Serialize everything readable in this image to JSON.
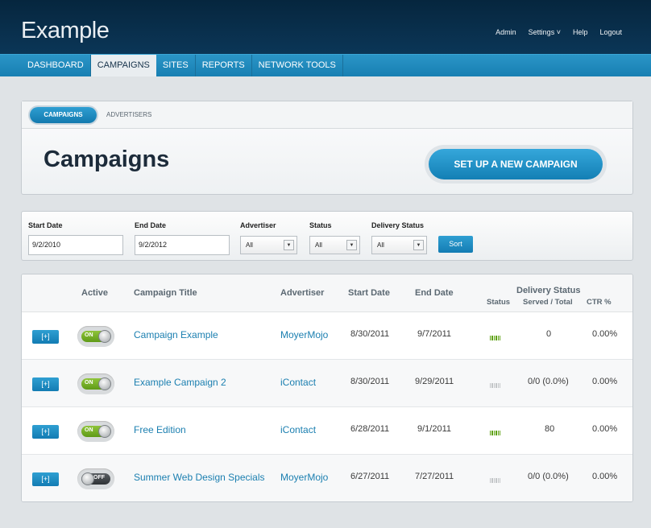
{
  "app": {
    "title": "Example"
  },
  "toplinks": [
    {
      "label": "Admin"
    },
    {
      "label": "Settings ˅"
    },
    {
      "label": "Help"
    },
    {
      "label": "Logout"
    }
  ],
  "nav": [
    {
      "label": "DASHBOARD"
    },
    {
      "label": "CAMPAIGNS"
    },
    {
      "label": "SITES"
    },
    {
      "label": "REPORTS"
    },
    {
      "label": "NETWORK TOOLS"
    }
  ],
  "subtabs": {
    "active": "CAMPAIGNS",
    "other": "ADVERTISERS"
  },
  "page": {
    "title": "Campaigns",
    "new_button": "SET UP A NEW CAMPAIGN"
  },
  "filters": {
    "start_label": "Start Date",
    "start_value": "9/2/2010",
    "end_label": "End Date",
    "end_value": "9/2/2012",
    "advertiser_label": "Advertiser",
    "advertiser_value": "All",
    "status_label": "Status",
    "status_value": "All",
    "delivery_label": "Delivery Status",
    "delivery_value": "All",
    "sort_label": "Sort"
  },
  "table": {
    "headers": {
      "active": "Active",
      "title": "Campaign Title",
      "advertiser": "Advertiser",
      "start": "Start Date",
      "end": "End Date",
      "delivery": "Delivery Status",
      "status": "Status",
      "served": "Served / Total",
      "ctr": "CTR %"
    },
    "rows": [
      {
        "expand": "[+]",
        "toggle": "ON",
        "title": "Campaign Example",
        "advertiser": "MoyerMojo",
        "start": "8/30/2011",
        "end": "9/7/2011",
        "status_color": "#5ea114",
        "served": "0",
        "ctr": "0.00%"
      },
      {
        "expand": "[+]",
        "toggle": "ON",
        "title": "Example Campaign 2",
        "advertiser": "iContact",
        "start": "8/30/2011",
        "end": "9/29/2011",
        "status_color": "#c2c5c7",
        "served": "0/0 (0.0%)",
        "ctr": "0.00%"
      },
      {
        "expand": "[+]",
        "toggle": "ON",
        "title": "Free Edition",
        "advertiser": "iContact",
        "start": "6/28/2011",
        "end": "9/1/2011",
        "status_color": "#5ea114",
        "served": "80",
        "ctr": "0.00%"
      },
      {
        "expand": "[+]",
        "toggle": "OFF",
        "title": "Summer Web Design Specials",
        "advertiser": "MoyerMojo",
        "start": "6/27/2011",
        "end": "7/27/2011",
        "status_color": "#c2c5c7",
        "served": "0/0 (0.0%)",
        "ctr": "0.00%"
      }
    ]
  },
  "colors": {
    "header_bg": "#0b3657",
    "nav_bg": "#1f8bbe",
    "accent": "#1b7fb0",
    "status_active": "#5ea114",
    "status_inactive": "#c2c5c7"
  }
}
